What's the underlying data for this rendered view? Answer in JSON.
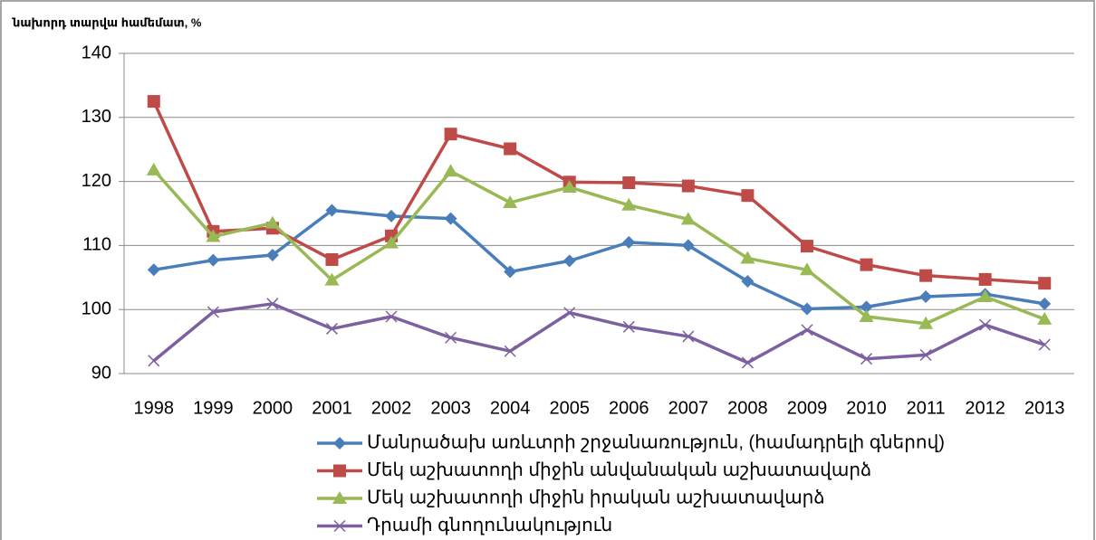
{
  "chart_data": {
    "type": "line",
    "y_label": "նախորդ տարվա համեմատ, %",
    "categories": [
      "1998",
      "1999",
      "2000",
      "2001",
      "2002",
      "2003",
      "2004",
      "2005",
      "2006",
      "2007",
      "2008",
      "2009",
      "2010",
      "2011",
      "2012",
      "2013"
    ],
    "series": [
      {
        "name": "Մանրածախ առևտրի շրջանառություն, (համադրելի գներով)",
        "color": "#4a7ebb",
        "marker": "diamond",
        "values": [
          106.2,
          107.7,
          108.5,
          115.5,
          114.6,
          114.2,
          105.9,
          107.6,
          110.5,
          110.0,
          104.4,
          100.1,
          100.4,
          102.0,
          102.4,
          100.9
        ]
      },
      {
        "name": "Մեկ աշխատողի միջին անվանական աշխատավարձ",
        "color": "#be4b48",
        "marker": "square",
        "values": [
          132.5,
          112.2,
          112.7,
          107.8,
          111.5,
          127.4,
          125.1,
          119.9,
          119.8,
          119.3,
          117.8,
          109.9,
          107.0,
          105.3,
          104.7,
          104.1
        ]
      },
      {
        "name": "Մեկ աշխատողի միջին իրական աշխատավարձ",
        "color": "#98b954",
        "marker": "triangle",
        "values": [
          121.8,
          111.4,
          113.5,
          104.6,
          110.4,
          121.6,
          116.7,
          119.1,
          116.3,
          114.1,
          108.0,
          106.2,
          98.9,
          97.8,
          102.0,
          98.5
        ]
      },
      {
        "name": "Դրամի գնողունակություն",
        "color": "#7d60a0",
        "marker": "x",
        "values": [
          92.0,
          99.6,
          100.9,
          97.0,
          98.9,
          95.6,
          93.5,
          99.5,
          97.3,
          95.8,
          91.7,
          96.8,
          92.3,
          92.9,
          97.6,
          94.5
        ]
      }
    ],
    "ylim": [
      90,
      140
    ],
    "yticks": [
      90,
      100,
      110,
      120,
      130,
      140
    ],
    "grid": true,
    "legend": "bottom"
  }
}
